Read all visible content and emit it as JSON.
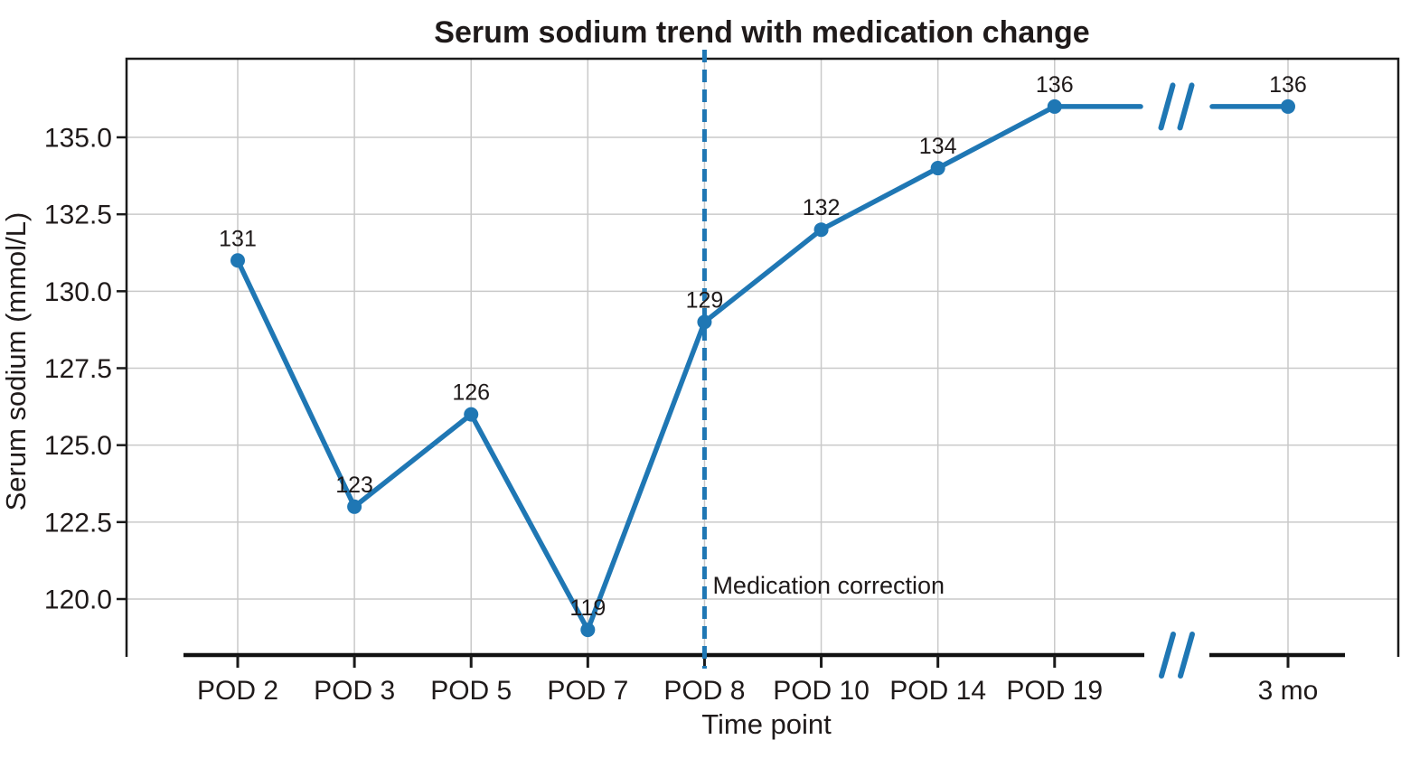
{
  "chart_data": {
    "type": "line",
    "title": "Serum sodium trend with medication change",
    "xlabel": "Time point",
    "ylabel": "Serum sodium (mmol/L)",
    "categories": [
      "POD 2",
      "POD 3",
      "POD 5",
      "POD 7",
      "POD 8",
      "POD 10",
      "POD 14",
      "POD 19",
      "3 mo"
    ],
    "category_slots": [
      0,
      1,
      2,
      3,
      4,
      5,
      6,
      7,
      9
    ],
    "values": [
      131,
      123,
      126,
      119,
      129,
      132,
      134,
      136,
      136
    ],
    "point_labels": [
      "131",
      "123",
      "126",
      "119",
      "129",
      "132",
      "134",
      "136",
      "136"
    ],
    "y_ticks": [
      120.0,
      122.5,
      125.0,
      127.5,
      130.0,
      132.5,
      135.0
    ],
    "y_tick_labels": [
      "120.0",
      "122.5",
      "125.0",
      "127.5",
      "130.0",
      "132.5",
      "135.0"
    ],
    "ylim": [
      118.1,
      137.6
    ],
    "grid": true,
    "legend": "none",
    "axis_break": {
      "between": [
        "POD 19",
        "3 mo"
      ]
    },
    "vline": {
      "x_category": "POD 8",
      "style": "dashed"
    },
    "annotation": {
      "text": "Medication correction",
      "x_category": "POD 8"
    },
    "colors": {
      "series": "#1f77b4",
      "marker": "#1f77b4",
      "vline": "#1f77b4",
      "break_marks": "#1f77b4",
      "grid": "#c9c9c9",
      "spine": "#1a1a1a",
      "axis_line": "#111111",
      "text": "#1f1a1a"
    }
  }
}
